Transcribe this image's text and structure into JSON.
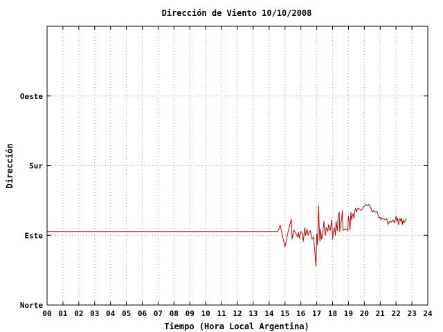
{
  "chart_data": {
    "type": "line",
    "title": "Dirección de Viento 10/10/2008",
    "xlabel": "Tiempo (Hora Local Argentina)",
    "ylabel": "Dirección",
    "xlim": [
      0,
      24
    ],
    "ylim": [
      0,
      360
    ],
    "x_ticks": [
      {
        "value": 0,
        "label": "00"
      },
      {
        "value": 1,
        "label": "01"
      },
      {
        "value": 2,
        "label": "02"
      },
      {
        "value": 3,
        "label": "03"
      },
      {
        "value": 4,
        "label": "04"
      },
      {
        "value": 5,
        "label": "05"
      },
      {
        "value": 6,
        "label": "06"
      },
      {
        "value": 7,
        "label": "07"
      },
      {
        "value": 8,
        "label": "08"
      },
      {
        "value": 9,
        "label": "09"
      },
      {
        "value": 10,
        "label": "10"
      },
      {
        "value": 11,
        "label": "11"
      },
      {
        "value": 12,
        "label": "12"
      },
      {
        "value": 13,
        "label": "13"
      },
      {
        "value": 14,
        "label": "14"
      },
      {
        "value": 15,
        "label": "15"
      },
      {
        "value": 16,
        "label": "16"
      },
      {
        "value": 17,
        "label": "17"
      },
      {
        "value": 18,
        "label": "18"
      },
      {
        "value": 19,
        "label": "19"
      },
      {
        "value": 20,
        "label": "20"
      },
      {
        "value": 21,
        "label": "21"
      },
      {
        "value": 22,
        "label": "22"
      },
      {
        "value": 23,
        "label": "23"
      },
      {
        "value": 24,
        "label": "24"
      }
    ],
    "y_ticks": [
      {
        "value": 0,
        "label": "Norte"
      },
      {
        "value": 90,
        "label": "Este"
      },
      {
        "value": 180,
        "label": "Sur"
      },
      {
        "value": 270,
        "label": "Oeste"
      }
    ],
    "grid": true,
    "series": [
      {
        "color": "#cc0000",
        "x": [
          0.0,
          14.55,
          14.7,
          14.85,
          15.0,
          15.2,
          15.4,
          15.45,
          15.55,
          15.7,
          15.8,
          15.85,
          15.9,
          16.0,
          16.1,
          16.15,
          16.25,
          16.3,
          16.4,
          16.45,
          16.55,
          16.6,
          16.7,
          16.8,
          16.88,
          16.95,
          17.0,
          17.05,
          17.12,
          17.15,
          17.2,
          17.25,
          17.3,
          17.38,
          17.45,
          17.5,
          17.55,
          17.6,
          17.7,
          17.75,
          17.85,
          17.95,
          18.0,
          18.05,
          18.12,
          18.18,
          18.22,
          18.3,
          18.35,
          18.42,
          18.45,
          18.5,
          18.55,
          18.62,
          18.65,
          18.75,
          18.85,
          18.95,
          19.0,
          19.05,
          19.1,
          19.15,
          19.2,
          19.25,
          19.3,
          19.35,
          19.4,
          19.45,
          19.5,
          19.55,
          19.6,
          19.7,
          19.8,
          19.9,
          20.0,
          20.1,
          20.2,
          20.3,
          20.4,
          20.5,
          20.6,
          20.7,
          20.8,
          20.9,
          21.0,
          21.05,
          21.1,
          21.2,
          21.3,
          21.4,
          21.5,
          21.6,
          21.7,
          21.8,
          21.9,
          22.0,
          22.05,
          22.1,
          22.15,
          22.2,
          22.25,
          22.3,
          22.35,
          22.4,
          22.45,
          22.5,
          22.55,
          22.6,
          22.65
        ],
        "y": [
          95,
          95,
          103,
          88,
          75,
          95,
          111,
          85,
          97,
          92,
          88,
          94,
          86,
          95,
          92,
          82,
          100,
          90,
          98,
          90,
          95,
          96,
          85,
          88,
          70,
          50,
          92,
          78,
          128,
          105,
          82,
          98,
          85,
          92,
          108,
          96,
          90,
          100,
          95,
          104,
          96,
          110,
          85,
          95,
          100,
          90,
          108,
          96,
          115,
          120,
          95,
          105,
          108,
          122,
          96,
          98,
          98,
          96,
          115,
          108,
          97,
          120,
          110,
          115,
          118,
          112,
          122,
          125,
          120,
          123,
          125,
          124,
          122,
          125,
          128,
          130,
          128,
          130,
          126,
          120,
          122,
          120,
          121,
          113,
          113,
          110,
          112,
          112,
          110,
          112,
          104,
          108,
          107,
          110,
          106,
          115,
          108,
          112,
          104,
          108,
          112,
          108,
          112,
          104,
          110,
          106,
          108,
          110,
          112
        ]
      }
    ]
  }
}
